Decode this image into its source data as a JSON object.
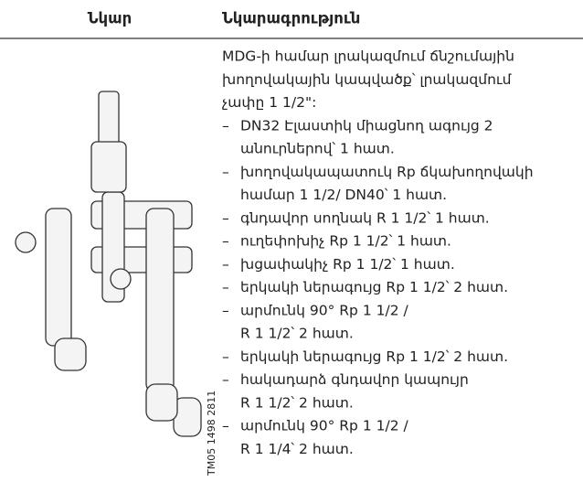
{
  "header": {
    "col1": "Նկար",
    "col2": "Նկարագրություն"
  },
  "intro": [
    "MDG-ի համար լրակազմում ճնշումային",
    "խողովակային կապվածք՝ լրակազմում",
    "չափը 1 1/2\":"
  ],
  "items": [
    [
      "DN32 Էլաստիկ միացնող ագույց 2",
      "անուրներով՝ 1 հատ."
    ],
    [
      "խողովակապատուկ Rp ճկախողովակի",
      "համար 1 1/2/ DN40՝ 1 հատ."
    ],
    [
      "գնդավոր սողնակ R 1 1/2՝ 1 հատ."
    ],
    [
      "ուղեփոխիչ Rp 1 1/2՝ 1 հատ."
    ],
    [
      "խցափակիչ Rp 1 1/2՝ 1 հատ."
    ],
    [
      "երկակի ներագույց Rp 1 1/2՝ 2 հատ."
    ],
    [
      "արմունկ 90° Rp 1 1/2 /",
      "R 1 1/2՝ 2 հատ."
    ],
    [
      "երկակի ներագույց Rp 1 1/2՝ 2 հատ."
    ],
    [
      "հակադարձ գնդավոր կապույր",
      "R 1 1/2՝ 2 հատ."
    ],
    [
      "արմունկ 90° Rp 1 1/2 /",
      "R 1 1/4՝ 2 հատ."
    ]
  ],
  "image_code": "TM05 1498 2811",
  "bullet": "–"
}
